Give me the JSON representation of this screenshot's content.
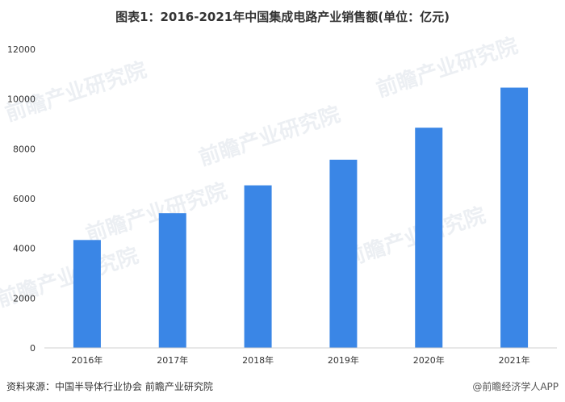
{
  "chart_data": {
    "type": "bar",
    "title": "图表1：2016-2021年中国集成电路产业销售额(单位：亿元)",
    "xlabel": "",
    "ylabel": "",
    "categories": [
      "2016年",
      "2017年",
      "2018年",
      "2019年",
      "2020年",
      "2021年"
    ],
    "values": [
      4336,
      5411,
      6532,
      7562,
      8848,
      10458
    ],
    "ylim": [
      0,
      12000
    ],
    "yticks": [
      0,
      2000,
      4000,
      6000,
      8000,
      10000,
      12000
    ],
    "grid": false,
    "bar_color": "#3a86e6"
  },
  "footer": {
    "source": "资料来源：中国半导体行业协会 前瞻产业研究院",
    "brand": "@前瞻经济学人APP"
  },
  "watermark": {
    "text": "前瞻产业研究院"
  }
}
